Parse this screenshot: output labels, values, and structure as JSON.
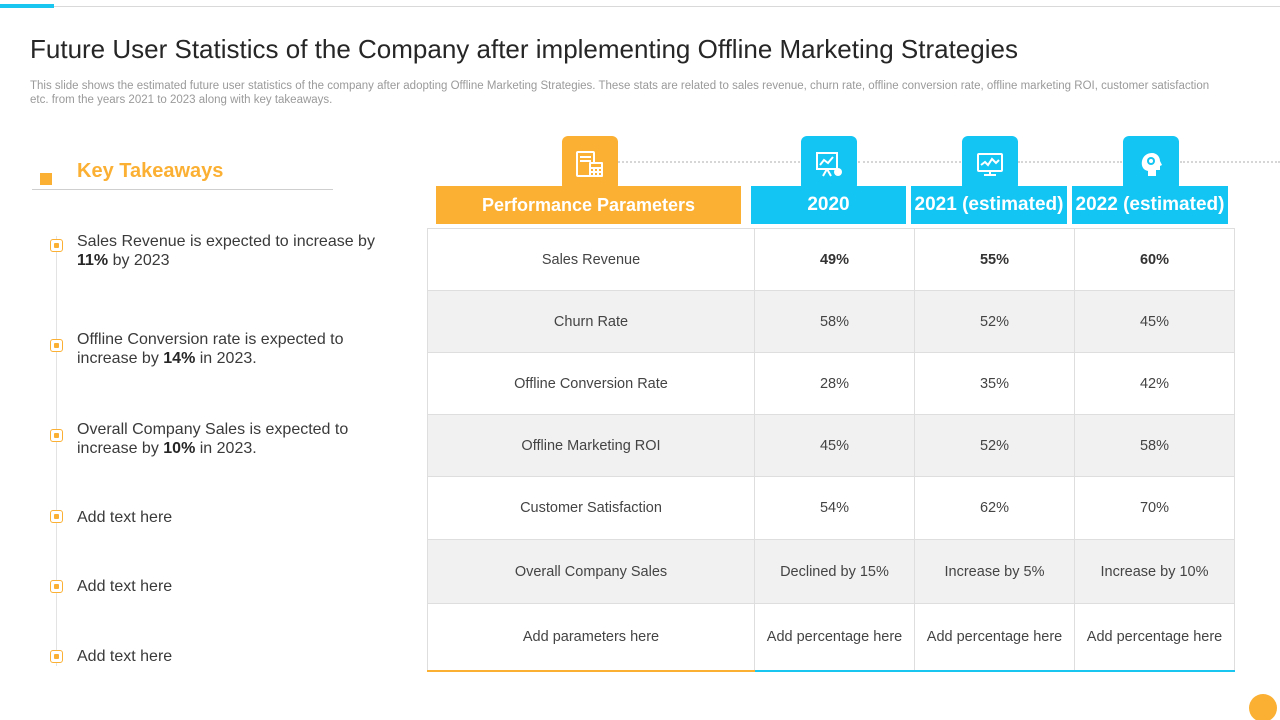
{
  "slide": {
    "title": "Future User Statistics of the Company after implementing Offline Marketing Strategies",
    "subtitle": "This slide shows the estimated future user statistics of the company after adopting Offline Marketing Strategies. These stats are related to sales revenue, churn rate, offline conversion rate, offline marketing ROI, customer satisfaction etc. from the years 2021 to 2023 along with key takeaways."
  },
  "takeaways": {
    "title": "Key Takeaways",
    "items": [
      {
        "pre": "Sales Revenue  is expected to increase by ",
        "bold": "11%",
        "post": " by 2023"
      },
      {
        "pre": "Offline Conversion rate is expected to increase by ",
        "bold": "14%",
        "post": " in 2023."
      },
      {
        "pre": "Overall Company Sales is expected to increase by ",
        "bold": "10%",
        "post": " in 2023."
      },
      {
        "pre": "Add text here",
        "bold": "",
        "post": ""
      },
      {
        "pre": "Add text here",
        "bold": "",
        "post": ""
      },
      {
        "pre": "Add text here",
        "bold": "",
        "post": ""
      }
    ]
  },
  "icons": [
    "calculator-document-icon",
    "presentation-board-icon",
    "chart-screen-icon",
    "gear-head-icon"
  ],
  "colors": {
    "accent_orange": "#fbb034",
    "accent_blue": "#12c5f3"
  },
  "table": {
    "headers": [
      "Performance Parameters",
      "2020",
      "2021 (estimated)",
      "2022 (estimated)"
    ],
    "rows": [
      {
        "param": "Sales Revenue",
        "values": [
          "49%",
          "55%",
          "60%"
        ]
      },
      {
        "param": "Churn Rate",
        "values": [
          "58%",
          "52%",
          "45%"
        ]
      },
      {
        "param": "Offline Conversion Rate",
        "values": [
          "28%",
          "35%",
          "42%"
        ]
      },
      {
        "param": "Offline Marketing  ROI",
        "values": [
          "45%",
          "52%",
          "58%"
        ]
      },
      {
        "param": "Customer Satisfaction",
        "values": [
          "54%",
          "62%",
          "70%"
        ]
      },
      {
        "param": "Overall Company Sales",
        "values": [
          "Declined by 15%",
          "Increase by 5%",
          "Increase by 10%"
        ]
      },
      {
        "param": "Add parameters here",
        "values": [
          "Add percentage here",
          "Add percentage here",
          "Add percentage here"
        ]
      }
    ]
  }
}
